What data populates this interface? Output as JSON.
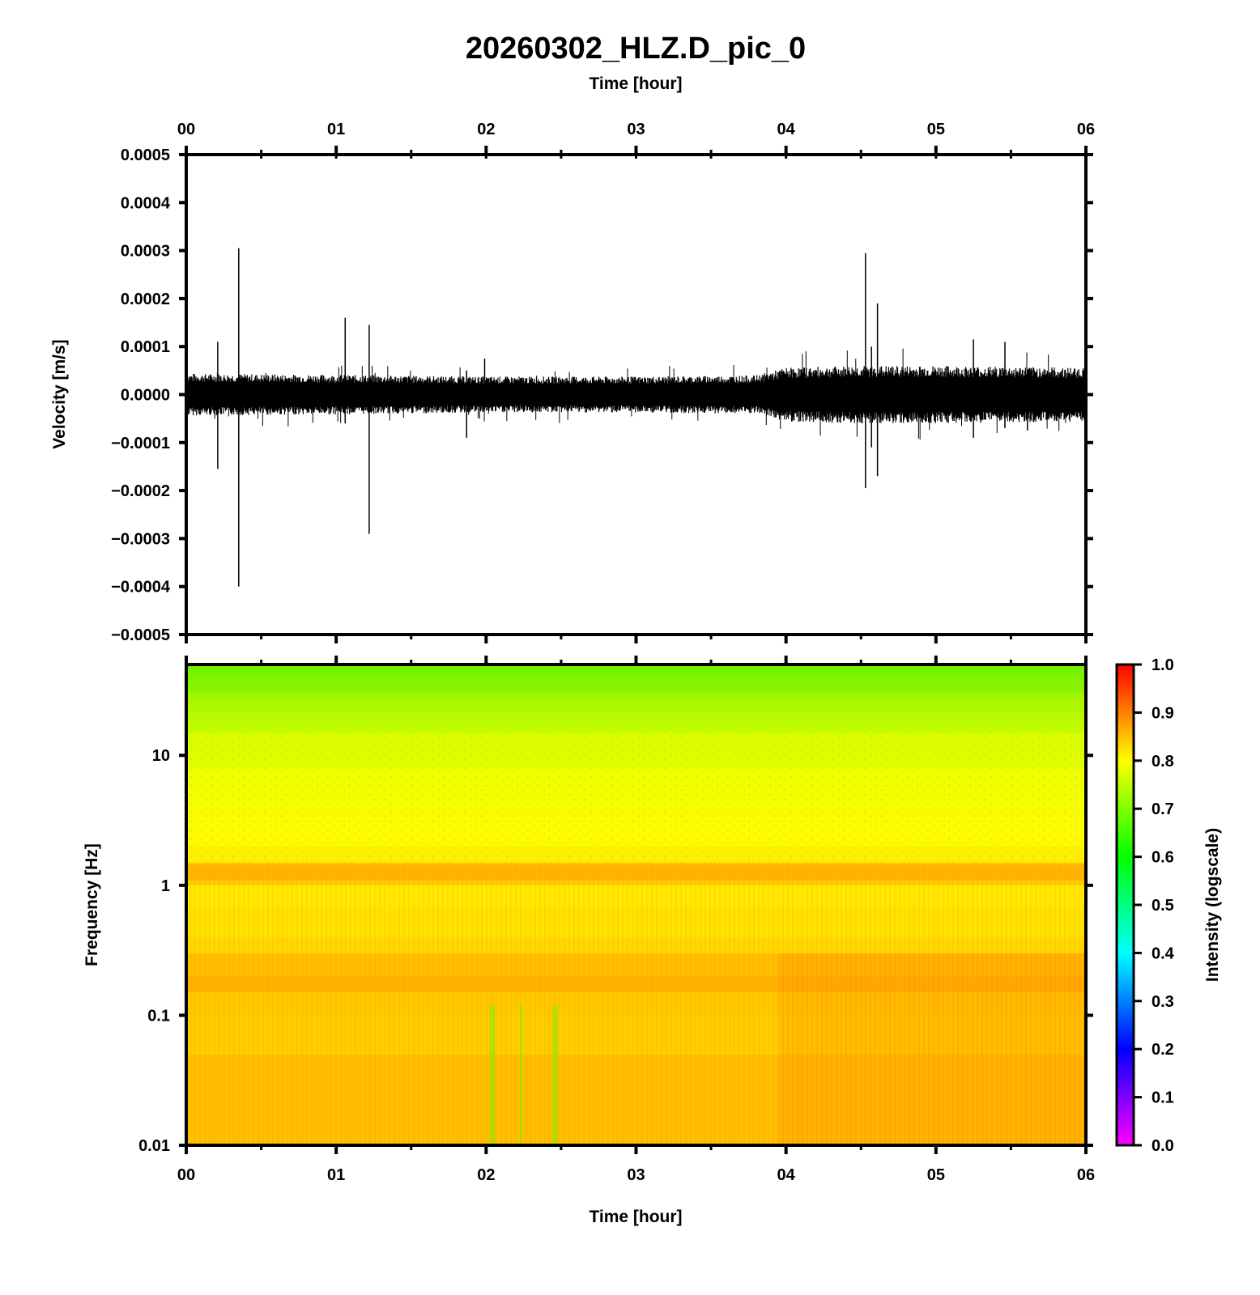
{
  "title": "20260302_HLZ.D_pic_0",
  "chart_data": [
    {
      "type": "line",
      "name": "waveform",
      "xlabel": "Time [hour]",
      "ylabel": "Velocity [m/s]",
      "xlim": [
        0,
        6
      ],
      "ylim": [
        -0.0005,
        0.0005
      ],
      "x_ticks": [
        "00",
        "01",
        "02",
        "03",
        "04",
        "05",
        "06"
      ],
      "y_ticks": [
        "0.0005",
        "0.0004",
        "0.0003",
        "0.0002",
        "0.0001",
        "0.0000",
        "−0.0001",
        "−0.0002",
        "−0.0003",
        "−0.0004",
        "−0.0005"
      ],
      "y_tick_values": [
        0.0005,
        0.0004,
        0.0003,
        0.0002,
        0.0001,
        0,
        -0.0001,
        -0.0002,
        -0.0003,
        -0.0004,
        -0.0005
      ],
      "noise_envelope": {
        "x": [
          0,
          1,
          2,
          3,
          3.8,
          4,
          4.5,
          5,
          6
        ],
        "amplitude": [
          3.5e-05,
          3.3e-05,
          3e-05,
          3e-05,
          3.2e-05,
          4.5e-05,
          4.8e-05,
          4.8e-05,
          4.5e-05
        ]
      },
      "spikes": [
        {
          "t": 0.21,
          "max": 0.00011,
          "min": -0.000155
        },
        {
          "t": 0.35,
          "max": 0.000305,
          "min": -0.0004
        },
        {
          "t": 1.06,
          "max": 0.00016,
          "min": -6e-05
        },
        {
          "t": 1.22,
          "max": 0.000145,
          "min": -0.00029
        },
        {
          "t": 1.87,
          "max": 5e-05,
          "min": -9e-05
        },
        {
          "t": 1.99,
          "max": 7.5e-05,
          "min": -3e-05
        },
        {
          "t": 4.53,
          "max": 0.000295,
          "min": -0.000195
        },
        {
          "t": 4.57,
          "max": 0.0001,
          "min": -0.00011
        },
        {
          "t": 4.61,
          "max": 0.00019,
          "min": -0.00017
        },
        {
          "t": 5.25,
          "max": 0.000115,
          "min": -9e-05
        },
        {
          "t": 5.46,
          "max": 0.00011,
          "min": -7e-05
        },
        {
          "t": 5.61,
          "max": 4e-05,
          "min": -7.5e-05
        }
      ]
    },
    {
      "type": "heatmap",
      "name": "spectrogram",
      "xlabel": "Time [hour]",
      "ylabel": "Frequency [Hz]",
      "xlim": [
        0,
        6
      ],
      "ylim": [
        0.01,
        50
      ],
      "yscale": "log",
      "x_ticks": [
        "00",
        "01",
        "02",
        "03",
        "04",
        "05",
        "06"
      ],
      "y_ticks": [
        "10",
        "1",
        "0.1",
        "0.01"
      ],
      "y_tick_values": [
        10,
        1,
        0.1,
        0.01
      ],
      "intensity_profile": {
        "freq_hz": [
          50,
          30,
          15,
          8,
          4,
          2,
          1.5,
          1.2,
          1.0,
          0.7,
          0.4,
          0.3,
          0.2,
          0.15,
          0.1,
          0.05,
          0.01
        ],
        "intensity": [
          0.68,
          0.72,
          0.77,
          0.79,
          0.8,
          0.81,
          0.82,
          0.88,
          0.82,
          0.82,
          0.83,
          0.84,
          0.88,
          0.86,
          0.84,
          0.85,
          0.87
        ]
      },
      "louder_after_hour": 3.95,
      "quiet_streaks_hours": [
        2.03,
        2.05,
        2.23,
        2.45,
        2.47
      ],
      "colorbar": {
        "label": "Intensity (logscale)",
        "ticks": [
          "1.0",
          "0.9",
          "0.8",
          "0.7",
          "0.6",
          "0.5",
          "0.4",
          "0.3",
          "0.2",
          "0.1",
          "0.0"
        ],
        "tick_values": [
          1.0,
          0.9,
          0.8,
          0.7,
          0.6,
          0.5,
          0.4,
          0.3,
          0.2,
          0.1,
          0.0
        ],
        "range": [
          0,
          1
        ],
        "colors": [
          "#ff00ff",
          "#0000ff",
          "#00ffff",
          "#00ff00",
          "#ffff00",
          "#ff0000"
        ]
      }
    }
  ]
}
